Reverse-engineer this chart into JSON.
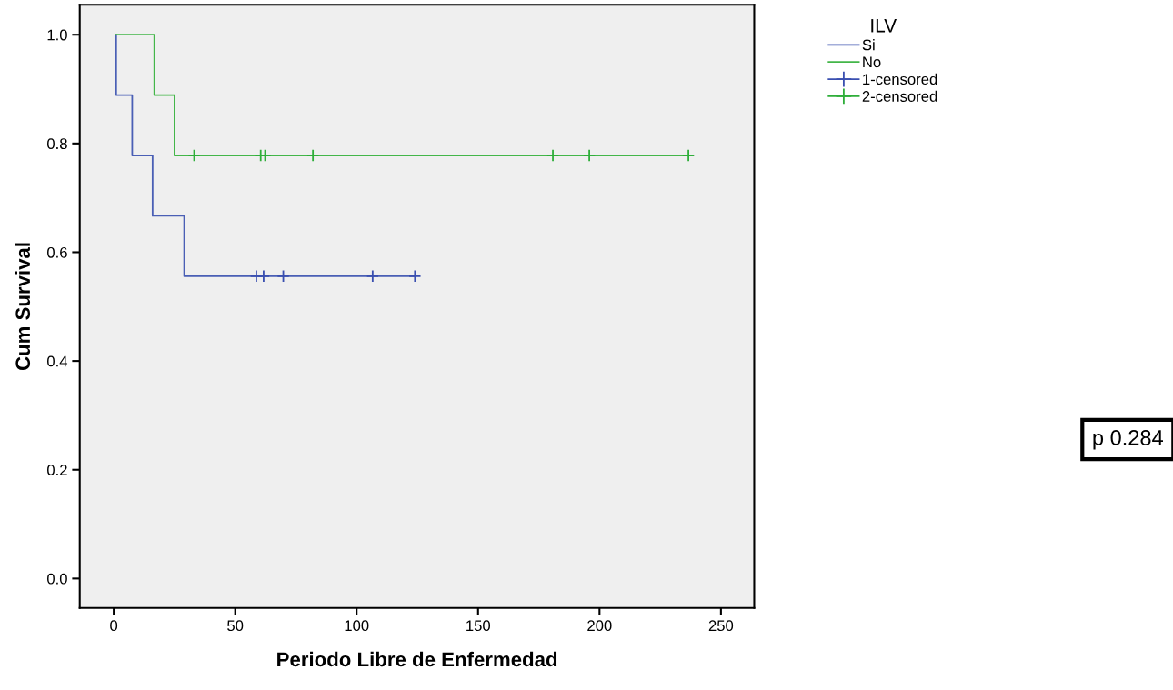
{
  "chart_data": {
    "type": "step",
    "xlabel": "Periodo Libre de Enfermedad",
    "ylabel": "Cum Survival",
    "legend_title": "ILV",
    "series": [
      {
        "name": "Si",
        "color": "#4a5fb5",
        "x": [
          1,
          1,
          7.6,
          16,
          29,
          124
        ],
        "values": [
          1.0,
          0.889,
          0.778,
          0.667,
          0.556,
          0.556
        ]
      },
      {
        "name": "No",
        "color": "#43b649",
        "x": [
          1,
          16.7,
          25,
          236.6
        ],
        "values": [
          1.0,
          0.889,
          0.778,
          0.778
        ]
      },
      {
        "name": "1-censored",
        "type": "scatter",
        "marker": "cross",
        "color": "#3a4fb0",
        "x": [
          58.7,
          61.7,
          69.8,
          106.6,
          124.0
        ],
        "values": [
          0.556,
          0.556,
          0.556,
          0.556,
          0.556
        ]
      },
      {
        "name": "2-censored",
        "type": "scatter",
        "marker": "cross",
        "color": "#2fae3a",
        "x": [
          33.1,
          60.5,
          62.3,
          82.0,
          180.8,
          195.8,
          236.6
        ],
        "values": [
          0.778,
          0.778,
          0.778,
          0.778,
          0.778,
          0.778,
          0.778
        ]
      }
    ],
    "xlim": [
      -14,
      263.7
    ],
    "ylim": [
      -0.054,
      1.055
    ],
    "xticks": [
      0,
      50,
      100,
      150,
      200,
      250
    ],
    "yticks": [
      {
        "value": 0,
        "label": "0.0"
      },
      {
        "value": 0.2,
        "label": "0.2"
      },
      {
        "value": 0.4,
        "label": "0.4"
      },
      {
        "value": 0.6,
        "label": "0.6"
      },
      {
        "value": 0.8,
        "label": "0.8"
      },
      {
        "value": 1.0,
        "label": "1.0"
      }
    ],
    "grid": false,
    "legend": "right",
    "annotations": [
      "p 0.284"
    ]
  }
}
